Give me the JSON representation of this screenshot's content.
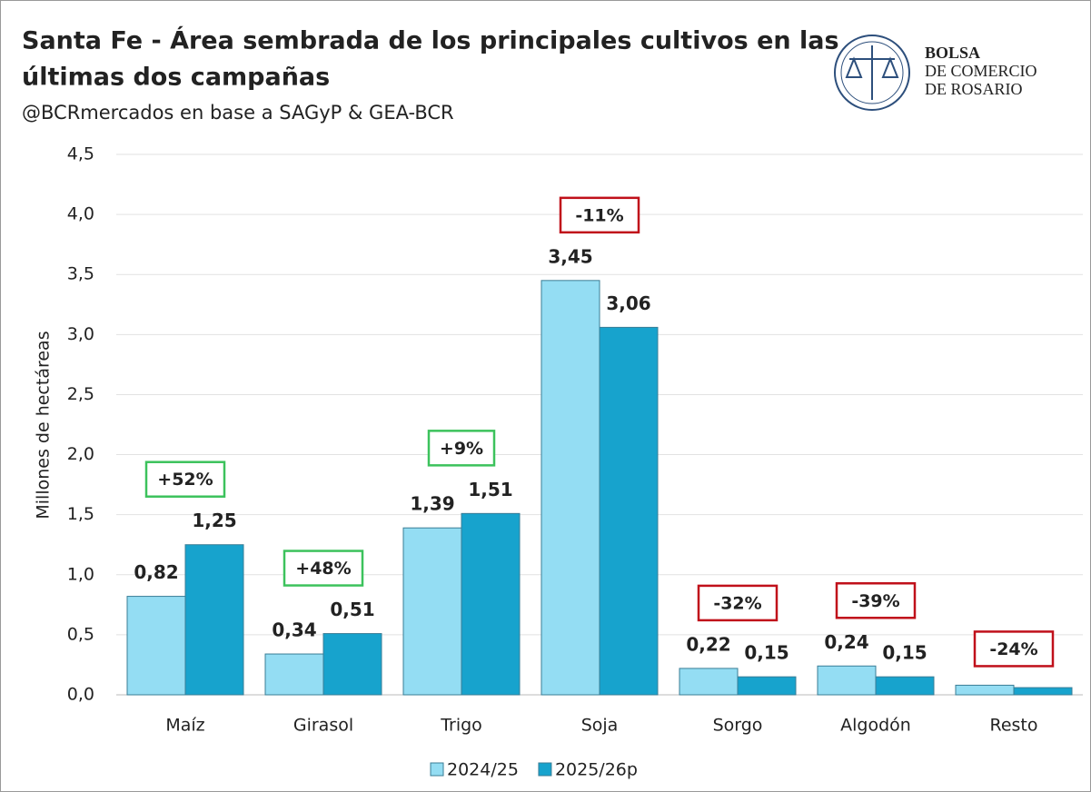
{
  "chart_data": {
    "type": "bar",
    "title": [
      "Santa Fe - Área sembrada de los principales cultivos en las",
      "últimas dos campañas"
    ],
    "subtitle": "@BCRmercados en base a SAGyP & GEA-BCR",
    "logo": [
      "BOLSA",
      "DE COMERCIO",
      "DE ROSARIO"
    ],
    "y_label": "Millones de hectáreas",
    "categories": [
      "Maíz",
      "Girasol",
      "Trigo",
      "Soja",
      "Sorgo",
      "Algodón",
      "Resto"
    ],
    "series": [
      {
        "name": "2024/25",
        "color": "#94ddf3",
        "label_color": "#2fb0dc",
        "values": [
          0.82,
          0.34,
          1.39,
          3.45,
          0.22,
          0.24,
          0.08
        ],
        "value_labels": [
          "0,82",
          "0,34",
          "1,39",
          "3,45",
          "0,22",
          "0,24",
          null
        ]
      },
      {
        "name": "2025/26p",
        "color": "#17a3cd",
        "label_color": "#1a86ad",
        "values": [
          1.25,
          0.51,
          1.51,
          3.06,
          0.15,
          0.15,
          0.06
        ],
        "value_labels": [
          "1,25",
          "0,51",
          "1,51",
          "3,06",
          "0,15",
          "0,15",
          null
        ]
      }
    ],
    "change_labels": [
      "+52%",
      "+48%",
      "+9%",
      "-11%",
      "-32%",
      "-39%",
      "-24%"
    ],
    "up_color": "#3cc25c",
    "down_color": "#c0101a",
    "ylim": [
      0,
      4.5
    ],
    "yticks": [
      {
        "value": 0,
        "label": "0,0"
      },
      {
        "value": 0.5,
        "label": "0,5"
      },
      {
        "value": 1,
        "label": "1,0"
      },
      {
        "value": 1.5,
        "label": "1,5"
      },
      {
        "value": 2,
        "label": "2,0"
      },
      {
        "value": 2.5,
        "label": "2,5"
      },
      {
        "value": 3,
        "label": "3,0"
      },
      {
        "value": 3.5,
        "label": "3,5"
      },
      {
        "value": 4,
        "label": "4,0"
      },
      {
        "value": 4.5,
        "label": "4,5"
      }
    ],
    "grid": true
  }
}
